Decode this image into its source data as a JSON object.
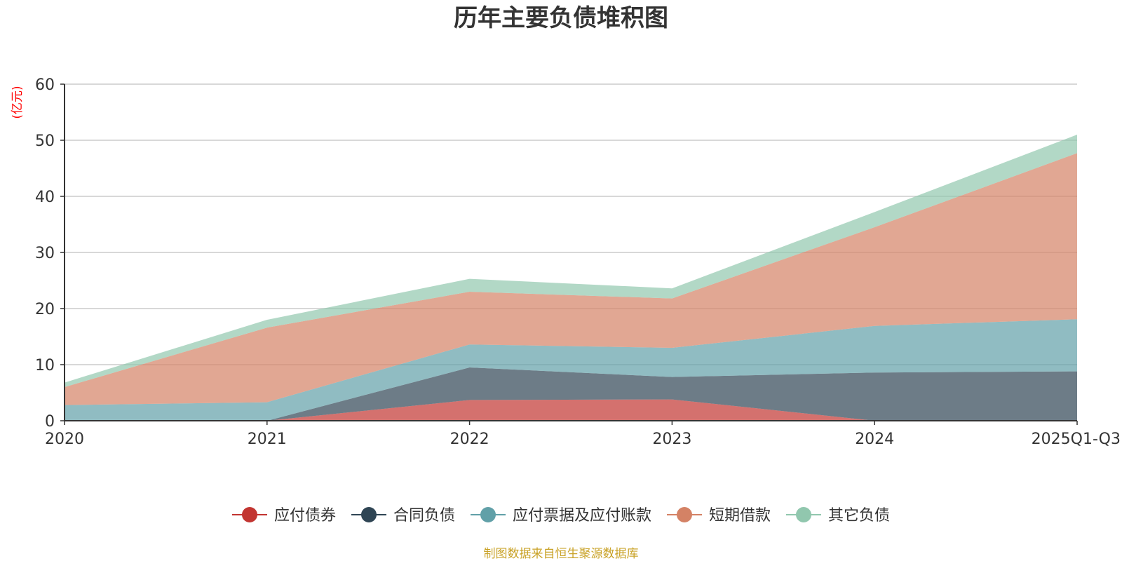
{
  "colors": {
    "应付债券": "#c23531",
    "合同负债": "#2f4554",
    "应付票据及应付账款": "#61a0a8",
    "短期借款": "#d48265",
    "其它负债": "#91c7ae",
    "unit": "#ff0000",
    "source": "#c9a227"
  },
  "chart_data": {
    "type": "area",
    "stacked": true,
    "title": "历年主要负债堆积图",
    "ylabel": "(亿元)",
    "xlabel": "",
    "categories": [
      "2020",
      "2021",
      "2022",
      "2023",
      "2024",
      "2025Q1-Q3"
    ],
    "ylim": [
      0,
      60
    ],
    "yticks": [
      0,
      10,
      20,
      30,
      40,
      50,
      60
    ],
    "grid": true,
    "legend_position": "bottom",
    "series": [
      {
        "name": "应付债券",
        "values": [
          0,
          0,
          3.7,
          3.8,
          0,
          0
        ]
      },
      {
        "name": "合同负债",
        "values": [
          0,
          0,
          5.8,
          4.0,
          8.6,
          8.8
        ]
      },
      {
        "name": "应付票据及应付账款",
        "values": [
          2.8,
          3.3,
          4.1,
          5.2,
          8.3,
          9.3
        ]
      },
      {
        "name": "短期借款",
        "values": [
          3.2,
          13.3,
          9.4,
          8.8,
          17.6,
          29.6
        ]
      },
      {
        "name": "其它负债",
        "values": [
          0.8,
          1.4,
          2.3,
          1.8,
          2.7,
          3.3
        ]
      }
    ]
  },
  "footer": {
    "source": "制图数据来自恒生聚源数据库"
  }
}
